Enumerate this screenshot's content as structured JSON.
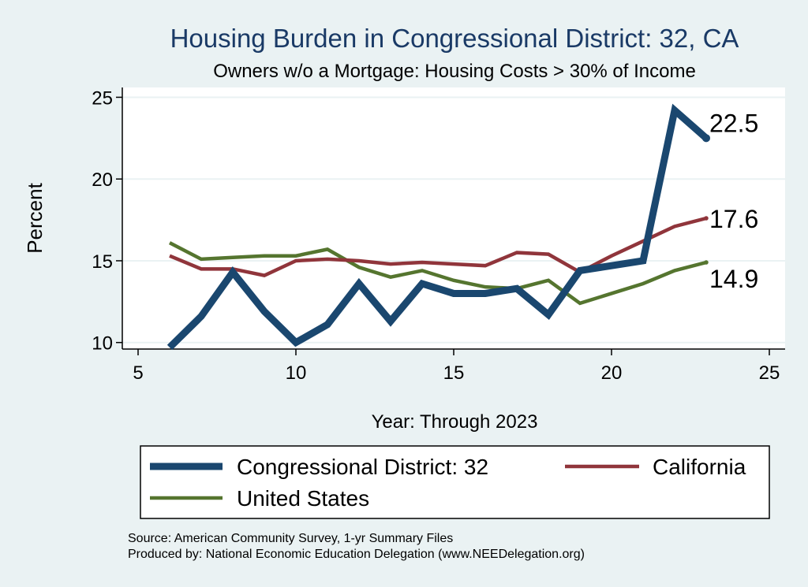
{
  "chart_data": {
    "type": "line",
    "title": "Housing Burden in Congressional District:  32, CA",
    "subtitle": "Owners w/o a Mortgage: Housing Costs > 30% of Income",
    "xlabel": "Year: Through 2023",
    "ylabel": "Percent",
    "xlim": [
      5,
      25
    ],
    "ylim": [
      9.6,
      25.6
    ],
    "xticks": [
      5,
      10,
      15,
      20,
      25
    ],
    "yticks": [
      10,
      15,
      20,
      25
    ],
    "grid": true,
    "legend_position": "bottom",
    "series": [
      {
        "name": "Congressional District:  32",
        "color": "#1a476f",
        "x": [
          6,
          7,
          8,
          9,
          10,
          11,
          12,
          13,
          14,
          15,
          16,
          17,
          18,
          19,
          20,
          21,
          22,
          23
        ],
        "values": [
          9.7,
          11.6,
          14.3,
          11.9,
          10.0,
          11.1,
          13.6,
          11.3,
          13.6,
          13.0,
          13.0,
          13.3,
          11.7,
          14.4,
          14.7,
          15.0,
          24.2,
          22.5
        ],
        "end_label": "22.5"
      },
      {
        "name": "California",
        "color": "#90353b",
        "x": [
          6,
          7,
          8,
          9,
          10,
          11,
          12,
          13,
          14,
          15,
          16,
          17,
          18,
          19,
          20,
          21,
          22,
          23
        ],
        "values": [
          15.3,
          14.5,
          14.5,
          14.1,
          15.0,
          15.1,
          15.0,
          14.8,
          14.9,
          14.8,
          14.7,
          15.5,
          15.4,
          14.3,
          15.3,
          16.2,
          17.1,
          17.6
        ],
        "end_label": "17.6"
      },
      {
        "name": "United States",
        "color": "#55752f",
        "x": [
          6,
          7,
          8,
          9,
          10,
          11,
          12,
          13,
          14,
          15,
          16,
          17,
          18,
          19,
          20,
          21,
          22,
          23
        ],
        "values": [
          16.1,
          15.1,
          15.2,
          15.3,
          15.3,
          15.7,
          14.6,
          14.0,
          14.4,
          13.8,
          13.4,
          13.3,
          13.8,
          12.4,
          13.0,
          13.6,
          14.4,
          14.9
        ],
        "end_label": "14.9"
      }
    ],
    "source_line": "Source: American Community Survey, 1-yr Summary Files",
    "produced_line": "Produced by: National Economic Education Delegation (www.NEEDelegation.org)"
  }
}
